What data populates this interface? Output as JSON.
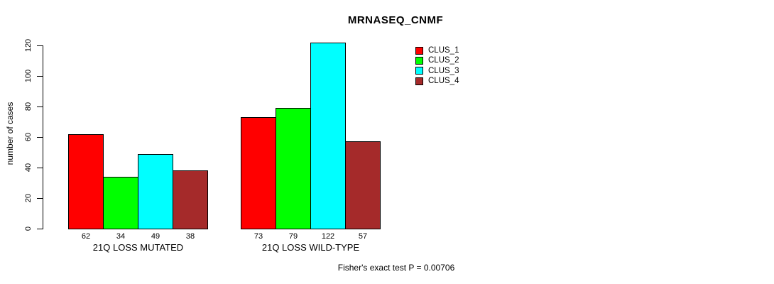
{
  "title": "MRNASEQ_CNMF",
  "chart_data": {
    "type": "bar",
    "title": "MRNASEQ_CNMF",
    "xlabel": "",
    "ylabel": "number of cases",
    "categories": [
      "21Q LOSS MUTATED",
      "21Q LOSS WILD-TYPE"
    ],
    "series": [
      {
        "name": "CLUS_1",
        "color": "#ff0000",
        "values": [
          62,
          73
        ]
      },
      {
        "name": "CLUS_2",
        "color": "#00ff00",
        "values": [
          34,
          79
        ]
      },
      {
        "name": "CLUS_3",
        "color": "#00ffff",
        "values": [
          49,
          122
        ]
      },
      {
        "name": "CLUS_4",
        "color": "#a52a2a",
        "values": [
          38,
          57
        ]
      }
    ],
    "yticks": [
      0,
      20,
      40,
      60,
      80,
      100,
      120
    ],
    "ylim": [
      0,
      122
    ],
    "grid": false,
    "legend_position": "top-right",
    "bar_outline_color": "#000000",
    "axis_color": "#000000",
    "annotation": "Fisher's exact test P = 0.00706"
  }
}
